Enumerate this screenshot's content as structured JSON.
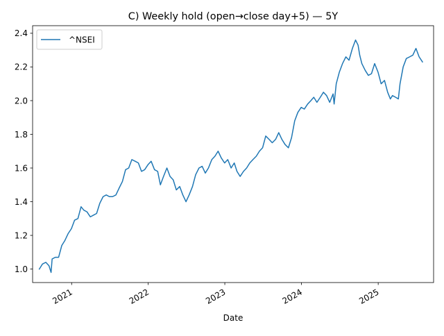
{
  "chart_data": {
    "type": "line",
    "title": "C) Weekly hold (open→close day+5) — 5Y",
    "xlabel": "Date",
    "ylabel": "",
    "x_axis_type": "date",
    "xlim": [
      "2020-06-29",
      "2025-09-22"
    ],
    "ylim": [
      0.92,
      2.445
    ],
    "x_ticks": [
      {
        "value": "2021-01-01",
        "label": "2021"
      },
      {
        "value": "2022-01-01",
        "label": "2022"
      },
      {
        "value": "2023-01-01",
        "label": "2023"
      },
      {
        "value": "2024-01-01",
        "label": "2024"
      },
      {
        "value": "2025-01-01",
        "label": "2025"
      }
    ],
    "y_ticks": [
      {
        "value": 1.0,
        "label": "1.0"
      },
      {
        "value": 1.2,
        "label": "1.2"
      },
      {
        "value": 1.4,
        "label": "1.4"
      },
      {
        "value": 1.6,
        "label": "1.6"
      },
      {
        "value": 1.8,
        "label": "1.8"
      },
      {
        "value": 2.0,
        "label": "2.0"
      },
      {
        "value": 2.2,
        "label": "2.2"
      },
      {
        "value": 2.4,
        "label": "2.4"
      }
    ],
    "x_tick_rotation": 30,
    "grid": false,
    "legend": {
      "position": "top-left"
    },
    "series": [
      {
        "name": "^NSEI",
        "color": "#1f77b4",
        "x": [
          "2020-07-31",
          "2020-08-15",
          "2020-08-31",
          "2020-09-15",
          "2020-09-25",
          "2020-09-30",
          "2020-10-15",
          "2020-10-31",
          "2020-11-15",
          "2020-11-30",
          "2020-12-15",
          "2020-12-31",
          "2021-01-15",
          "2021-01-31",
          "2021-02-15",
          "2021-02-28",
          "2021-03-15",
          "2021-03-31",
          "2021-04-15",
          "2021-04-30",
          "2021-05-15",
          "2021-05-31",
          "2021-06-15",
          "2021-06-30",
          "2021-07-15",
          "2021-07-31",
          "2021-08-15",
          "2021-08-31",
          "2021-09-15",
          "2021-09-30",
          "2021-10-15",
          "2021-10-31",
          "2021-11-15",
          "2021-11-30",
          "2021-12-15",
          "2021-12-31",
          "2022-01-15",
          "2022-01-31",
          "2022-02-15",
          "2022-02-28",
          "2022-03-15",
          "2022-03-31",
          "2022-04-15",
          "2022-04-30",
          "2022-05-15",
          "2022-05-31",
          "2022-06-15",
          "2022-06-30",
          "2022-07-15",
          "2022-07-31",
          "2022-08-15",
          "2022-08-31",
          "2022-09-15",
          "2022-09-30",
          "2022-10-15",
          "2022-10-31",
          "2022-11-15",
          "2022-11-30",
          "2022-12-15",
          "2022-12-31",
          "2023-01-15",
          "2023-01-31",
          "2023-02-15",
          "2023-02-28",
          "2023-03-15",
          "2023-03-31",
          "2023-04-15",
          "2023-04-30",
          "2023-05-15",
          "2023-05-31",
          "2023-06-15",
          "2023-06-30",
          "2023-07-15",
          "2023-07-31",
          "2023-08-15",
          "2023-08-31",
          "2023-09-15",
          "2023-09-30",
          "2023-10-15",
          "2023-10-31",
          "2023-11-15",
          "2023-11-30",
          "2023-12-15",
          "2023-12-31",
          "2024-01-15",
          "2024-01-31",
          "2024-02-15",
          "2024-02-29",
          "2024-03-15",
          "2024-03-31",
          "2024-04-15",
          "2024-04-30",
          "2024-05-15",
          "2024-05-31",
          "2024-06-05",
          "2024-06-15",
          "2024-06-30",
          "2024-07-15",
          "2024-07-31",
          "2024-08-15",
          "2024-08-31",
          "2024-09-15",
          "2024-09-27",
          "2024-10-05",
          "2024-10-15",
          "2024-10-31",
          "2024-11-15",
          "2024-11-30",
          "2024-12-15",
          "2024-12-31",
          "2025-01-15",
          "2025-01-31",
          "2025-02-15",
          "2025-02-28",
          "2025-03-10",
          "2025-03-25",
          "2025-04-07",
          "2025-04-15",
          "2025-04-30",
          "2025-05-15",
          "2025-05-31",
          "2025-06-15",
          "2025-06-30",
          "2025-07-15",
          "2025-07-31"
        ],
        "y": [
          1.0,
          1.03,
          1.04,
          1.02,
          0.98,
          1.06,
          1.07,
          1.07,
          1.14,
          1.17,
          1.21,
          1.24,
          1.29,
          1.3,
          1.37,
          1.35,
          1.34,
          1.31,
          1.32,
          1.33,
          1.39,
          1.43,
          1.44,
          1.43,
          1.43,
          1.44,
          1.48,
          1.52,
          1.59,
          1.6,
          1.65,
          1.64,
          1.63,
          1.58,
          1.59,
          1.62,
          1.64,
          1.59,
          1.58,
          1.5,
          1.55,
          1.6,
          1.55,
          1.53,
          1.47,
          1.49,
          1.44,
          1.4,
          1.44,
          1.49,
          1.56,
          1.6,
          1.61,
          1.57,
          1.6,
          1.65,
          1.67,
          1.7,
          1.66,
          1.63,
          1.65,
          1.6,
          1.63,
          1.58,
          1.55,
          1.58,
          1.6,
          1.63,
          1.65,
          1.67,
          1.7,
          1.72,
          1.79,
          1.77,
          1.75,
          1.77,
          1.81,
          1.77,
          1.74,
          1.72,
          1.78,
          1.88,
          1.93,
          1.96,
          1.95,
          1.98,
          2.0,
          2.02,
          1.99,
          2.02,
          2.05,
          2.03,
          1.99,
          2.04,
          1.98,
          2.1,
          2.17,
          2.22,
          2.26,
          2.24,
          2.31,
          2.36,
          2.33,
          2.27,
          2.22,
          2.18,
          2.15,
          2.16,
          2.22,
          2.17,
          2.1,
          2.12,
          2.05,
          2.01,
          2.03,
          2.02,
          2.01,
          2.1,
          2.2,
          2.25,
          2.26,
          2.27,
          2.31,
          2.26,
          2.23
        ]
      }
    ]
  }
}
